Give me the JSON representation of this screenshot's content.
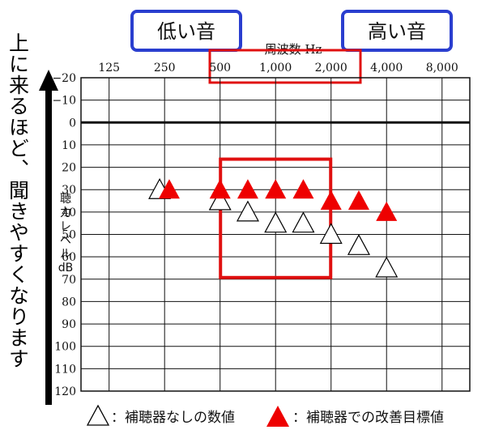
{
  "labels": {
    "low_tone": "低い音",
    "high_tone": "高い音",
    "xlabel": "周波数 Hz",
    "ylabel": [
      "聴",
      "力",
      "レ",
      "ベ",
      "ル",
      "dB"
    ],
    "side_text": "上に来るほど、聞きやすくなります"
  },
  "legend": {
    "open_label": "：補聴器なしの数値",
    "filled_label": "：補聴器での改善目標値"
  },
  "colors": {
    "accent_blue": "#2a3ecf",
    "highlight_red": "#e01010",
    "marker_red": "#ee0000",
    "grid": "#111111"
  },
  "chart_data": {
    "type": "scatter",
    "x_scale": "log2",
    "x_ticks": [
      125,
      250,
      500,
      1000,
      2000,
      4000,
      8000
    ],
    "x_tick_labels": [
      "125",
      "250",
      "500",
      "1,000",
      "2,000",
      "4,000",
      "8,000"
    ],
    "y_ticks": [
      -20,
      -10,
      0,
      10,
      20,
      30,
      40,
      50,
      60,
      70,
      80,
      90,
      100,
      110,
      120
    ],
    "y_tick_labels": [
      "−20",
      "−10",
      "0",
      "10",
      "20",
      "30",
      "40",
      "50",
      "60",
      "70",
      "80",
      "90",
      "100",
      "110",
      "120"
    ],
    "ylim": [
      -20,
      120
    ],
    "y_inverted": true,
    "xlim": [
      88,
      11314
    ],
    "series": [
      {
        "name": "補聴器なしの数値",
        "marker": "open-triangle",
        "points": [
          {
            "x": 235,
            "y": 30
          },
          {
            "x": 500,
            "y": 35
          },
          {
            "x": 707,
            "y": 40
          },
          {
            "x": 1000,
            "y": 45
          },
          {
            "x": 1414,
            "y": 45
          },
          {
            "x": 2000,
            "y": 50
          },
          {
            "x": 2828,
            "y": 55
          },
          {
            "x": 4000,
            "y": 65
          }
        ]
      },
      {
        "name": "補聴器での改善目標値",
        "marker": "filled-triangle",
        "points": [
          {
            "x": 265,
            "y": 30
          },
          {
            "x": 500,
            "y": 30
          },
          {
            "x": 707,
            "y": 30
          },
          {
            "x": 1000,
            "y": 30
          },
          {
            "x": 1414,
            "y": 30
          },
          {
            "x": 2000,
            "y": 35
          },
          {
            "x": 2828,
            "y": 35
          },
          {
            "x": 4000,
            "y": 40
          }
        ]
      }
    ],
    "highlight_region": {
      "x_from": 500,
      "x_to": 2000,
      "y_from": 20,
      "y_to": 70
    }
  }
}
